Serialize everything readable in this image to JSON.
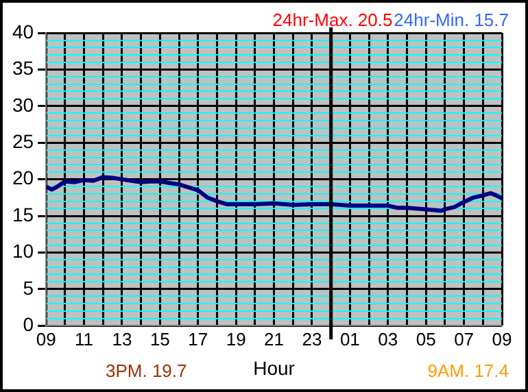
{
  "chart_data": {
    "type": "line",
    "xlabel": "Hour",
    "annotations": [
      "24hr-Max. 20.5",
      "24hr-Min. 15.7",
      "3PM. 19.7",
      "9AM. 17.4"
    ],
    "series": [
      {
        "color": "#000080",
        "x": [
          "--01-01T09:00",
          "--01-01T09:18",
          "--01-01T09:36",
          "--01-01T10:00",
          "--01-01T10:30",
          "--01-01T11:00",
          "--01-01T11:30",
          "--01-01T12:00",
          "--01-01T12:30",
          "--01-01T13:00",
          "--01-01T13:30",
          "--01-01T14:00",
          "--01-01T14:30",
          "--01-01T15:00",
          "--01-01T15:30",
          "--01-01T16:00",
          "--01-01T16:30",
          "--01-01T17:00",
          "--01-01T17:30",
          "--01-01T18:00",
          "--01-01T18:30",
          "--01-01T19:00",
          "--01-01T20:00",
          "--01-01T21:00",
          "--01-01T22:00",
          "--01-01T23:00",
          "--01-02T00:00",
          "--01-02T01:00",
          "--01-02T02:00",
          "--01-02T03:00",
          "--01-02T03:30",
          "--01-02T04:00",
          "--01-02T05:00",
          "--01-02T05:48",
          "--01-02T06:00",
          "--01-02T06:30",
          "--01-02T07:00",
          "--01-02T07:30",
          "--01-02T08:00",
          "--01-02T08:24",
          "--01-02T08:42",
          "--01-02T09:00"
        ],
        "values": [
          19.0,
          18.6,
          19.0,
          19.7,
          19.6,
          19.9,
          19.8,
          20.3,
          20.2,
          20.0,
          19.8,
          19.6,
          19.7,
          19.7,
          19.5,
          19.3,
          18.9,
          18.5,
          17.5,
          17.0,
          16.6,
          16.6,
          16.6,
          16.7,
          16.5,
          16.6,
          16.6,
          16.4,
          16.4,
          16.4,
          16.1,
          16.1,
          15.9,
          15.7,
          15.9,
          16.2,
          16.9,
          17.5,
          17.8,
          18.1,
          17.8,
          17.4
        ]
      }
    ],
    "xlim": [
      "--01-01T09:00",
      "--01-02T09:00"
    ],
    "xticks": [
      {
        "value": "--01-01T09:00",
        "label": "09"
      },
      {
        "value": "--01-01T10:00",
        "label": null
      },
      {
        "value": "--01-01T11:00",
        "label": "11"
      },
      {
        "value": "--01-01T12:00",
        "label": null
      },
      {
        "value": "--01-01T13:00",
        "label": "13"
      },
      {
        "value": "--01-01T14:00",
        "label": null
      },
      {
        "value": "--01-01T15:00",
        "label": "15"
      },
      {
        "value": "--01-01T16:00",
        "label": null
      },
      {
        "value": "--01-01T17:00",
        "label": "17"
      },
      {
        "value": "--01-01T18:00",
        "label": null
      },
      {
        "value": "--01-01T19:00",
        "label": "19"
      },
      {
        "value": "--01-01T20:00",
        "label": null
      },
      {
        "value": "--01-01T21:00",
        "label": "21"
      },
      {
        "value": "--01-01T22:00",
        "label": null
      },
      {
        "value": "--01-01T23:00",
        "label": "23"
      },
      {
        "value": "--01-02T00:00",
        "label": null
      },
      {
        "value": "--01-02T01:00",
        "label": "01"
      },
      {
        "value": "--01-02T02:00",
        "label": null
      },
      {
        "value": "--01-02T03:00",
        "label": "03"
      },
      {
        "value": "--01-02T04:00",
        "label": null
      },
      {
        "value": "--01-02T05:00",
        "label": "05"
      },
      {
        "value": "--01-02T06:00",
        "label": null
      },
      {
        "value": "--01-02T07:00",
        "label": "07"
      },
      {
        "value": "--01-02T08:00",
        "label": null
      },
      {
        "value": "--01-02T09:00",
        "label": "09"
      }
    ],
    "ylim": [
      0,
      40
    ],
    "yticks": [
      0,
      {
        "value": 1,
        "label": null
      },
      {
        "value": 2,
        "label": null
      },
      {
        "value": 3,
        "label": null
      },
      {
        "value": 4,
        "label": null
      },
      5,
      {
        "value": 6,
        "label": null
      },
      {
        "value": 7,
        "label": null
      },
      {
        "value": 8,
        "label": null
      },
      {
        "value": 9,
        "label": null
      },
      10,
      {
        "value": 11,
        "label": null
      },
      {
        "value": 12,
        "label": null
      },
      {
        "value": 13,
        "label": null
      },
      {
        "value": 14,
        "label": null
      },
      15,
      {
        "value": 16,
        "label": null
      },
      {
        "value": 17,
        "label": null
      },
      {
        "value": 18,
        "label": null
      },
      {
        "value": 19,
        "label": null
      },
      20,
      {
        "value": 21,
        "label": null
      },
      {
        "value": 22,
        "label": null
      },
      {
        "value": 23,
        "label": null
      },
      {
        "value": 24,
        "label": null
      },
      25,
      {
        "value": 26,
        "label": null
      },
      {
        "value": 27,
        "label": null
      },
      {
        "value": 28,
        "label": null
      },
      {
        "value": 29,
        "label": null
      },
      30,
      {
        "value": 31,
        "label": null
      },
      {
        "value": 32,
        "label": null
      },
      {
        "value": 33,
        "label": null
      },
      {
        "value": 34,
        "label": null
      },
      35,
      {
        "value": 36,
        "label": null
      },
      {
        "value": 37,
        "label": null
      },
      {
        "value": 38,
        "label": null
      },
      {
        "value": 39,
        "label": null
      },
      40
    ],
    "ref_lines": [
      {
        "axis": "x",
        "value": "--01-02T00:00",
        "color": "#000000"
      }
    ],
    "grid": true,
    "legend": false,
    "marker": "none",
    "line_style": "solid"
  }
}
